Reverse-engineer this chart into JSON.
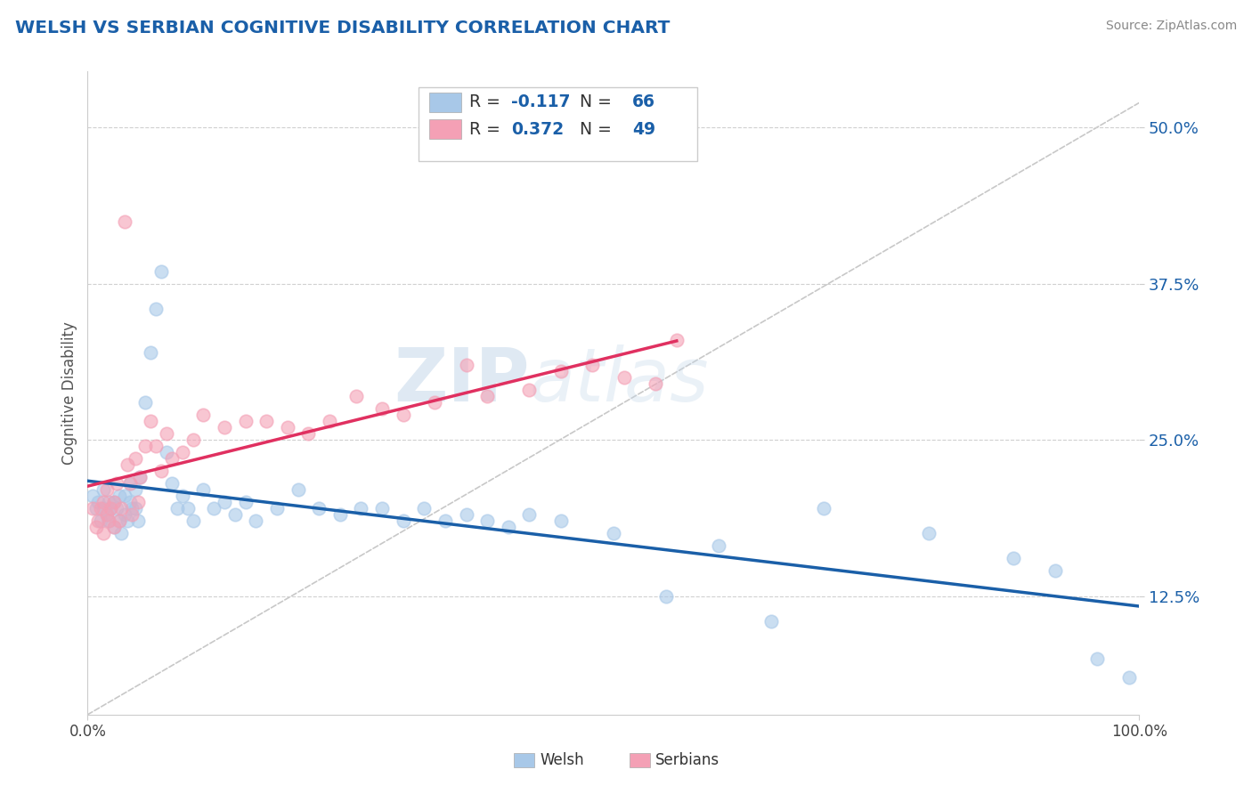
{
  "title": "WELSH VS SERBIAN COGNITIVE DISABILITY CORRELATION CHART",
  "source": "Source: ZipAtlas.com",
  "ylabel": "Cognitive Disability",
  "xlim": [
    0.0,
    1.0
  ],
  "ylim": [
    0.03,
    0.545
  ],
  "yticks": [
    0.125,
    0.25,
    0.375,
    0.5
  ],
  "ytick_labels": [
    "12.5%",
    "25.0%",
    "37.5%",
    "50.0%"
  ],
  "welsh_color": "#a8c8e8",
  "serbian_color": "#f4a0b5",
  "welsh_line_color": "#1a5fa8",
  "serbian_line_color": "#e03060",
  "diag_color": "#c8c8c8",
  "welsh_R": -0.117,
  "welsh_N": 66,
  "serbian_R": 0.372,
  "serbian_N": 49,
  "watermark_zip": "ZIP",
  "watermark_atlas": "atlas",
  "background_color": "#ffffff",
  "grid_color": "#d0d0d0",
  "title_color": "#1a5fa8",
  "source_color": "#888888",
  "legend_text_color": "#1a5fa8",
  "legend_label_color": "#333333",
  "welsh_x": [
    0.005,
    0.008,
    0.01,
    0.012,
    0.015,
    0.015,
    0.018,
    0.02,
    0.02,
    0.022,
    0.025,
    0.025,
    0.028,
    0.03,
    0.03,
    0.032,
    0.035,
    0.035,
    0.038,
    0.04,
    0.04,
    0.042,
    0.045,
    0.045,
    0.048,
    0.05,
    0.055,
    0.06,
    0.065,
    0.07,
    0.075,
    0.08,
    0.085,
    0.09,
    0.095,
    0.1,
    0.11,
    0.12,
    0.13,
    0.14,
    0.15,
    0.16,
    0.18,
    0.2,
    0.22,
    0.24,
    0.26,
    0.28,
    0.3,
    0.32,
    0.34,
    0.36,
    0.38,
    0.4,
    0.42,
    0.45,
    0.5,
    0.55,
    0.6,
    0.65,
    0.7,
    0.8,
    0.88,
    0.92,
    0.96,
    0.99
  ],
  "welsh_y": [
    0.205,
    0.195,
    0.2,
    0.185,
    0.195,
    0.21,
    0.19,
    0.185,
    0.2,
    0.195,
    0.18,
    0.2,
    0.195,
    0.185,
    0.205,
    0.175,
    0.19,
    0.205,
    0.185,
    0.2,
    0.215,
    0.195,
    0.195,
    0.21,
    0.185,
    0.22,
    0.28,
    0.32,
    0.355,
    0.385,
    0.24,
    0.215,
    0.195,
    0.205,
    0.195,
    0.185,
    0.21,
    0.195,
    0.2,
    0.19,
    0.2,
    0.185,
    0.195,
    0.21,
    0.195,
    0.19,
    0.195,
    0.195,
    0.185,
    0.195,
    0.185,
    0.19,
    0.185,
    0.18,
    0.19,
    0.185,
    0.175,
    0.125,
    0.165,
    0.105,
    0.195,
    0.175,
    0.155,
    0.145,
    0.075,
    0.06
  ],
  "serbian_x": [
    0.005,
    0.008,
    0.01,
    0.012,
    0.015,
    0.015,
    0.018,
    0.018,
    0.02,
    0.022,
    0.025,
    0.025,
    0.028,
    0.03,
    0.032,
    0.035,
    0.038,
    0.04,
    0.042,
    0.045,
    0.048,
    0.05,
    0.055,
    0.06,
    0.065,
    0.07,
    0.075,
    0.08,
    0.09,
    0.1,
    0.11,
    0.13,
    0.15,
    0.17,
    0.19,
    0.21,
    0.23,
    0.255,
    0.28,
    0.3,
    0.33,
    0.36,
    0.38,
    0.42,
    0.45,
    0.48,
    0.51,
    0.54,
    0.56
  ],
  "serbian_y": [
    0.195,
    0.18,
    0.185,
    0.195,
    0.175,
    0.2,
    0.19,
    0.21,
    0.185,
    0.195,
    0.18,
    0.2,
    0.215,
    0.185,
    0.195,
    0.425,
    0.23,
    0.215,
    0.19,
    0.235,
    0.2,
    0.22,
    0.245,
    0.265,
    0.245,
    0.225,
    0.255,
    0.235,
    0.24,
    0.25,
    0.27,
    0.26,
    0.265,
    0.265,
    0.26,
    0.255,
    0.265,
    0.285,
    0.275,
    0.27,
    0.28,
    0.31,
    0.285,
    0.29,
    0.305,
    0.31,
    0.3,
    0.295,
    0.33
  ]
}
